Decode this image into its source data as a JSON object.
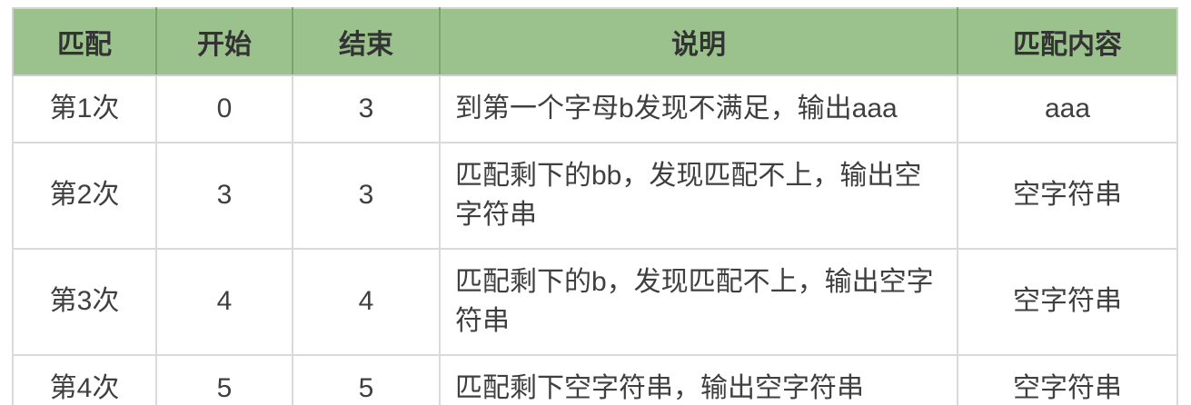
{
  "table": {
    "headers": [
      "匹配",
      "开始",
      "结束",
      "说明",
      "匹配内容"
    ],
    "rows": [
      {
        "match": "第1次",
        "start": "0",
        "end": "3",
        "desc": "到第一个字母b发现不满足，输出aaa",
        "content": "aaa"
      },
      {
        "match": "第2次",
        "start": "3",
        "end": "3",
        "desc": "匹配剩下的bb，发现匹配不上，输出空\n字符串",
        "content": "空字符串"
      },
      {
        "match": "第3次",
        "start": "4",
        "end": "4",
        "desc": "匹配剩下的b，发现匹配不上，输出空字\n符串",
        "content": "空字符串"
      },
      {
        "match": "第4次",
        "start": "5",
        "end": "5",
        "desc": "匹配剩下空字符串，输出空字符串",
        "content": "空字符串"
      }
    ]
  },
  "colors": {
    "header_bg": "#9bc18c",
    "header_divider": "#7ba56b",
    "body_border": "#dadada",
    "outer_border": "#d2d2d2",
    "header_text": "#333333",
    "body_text": "#3f3f3f"
  }
}
